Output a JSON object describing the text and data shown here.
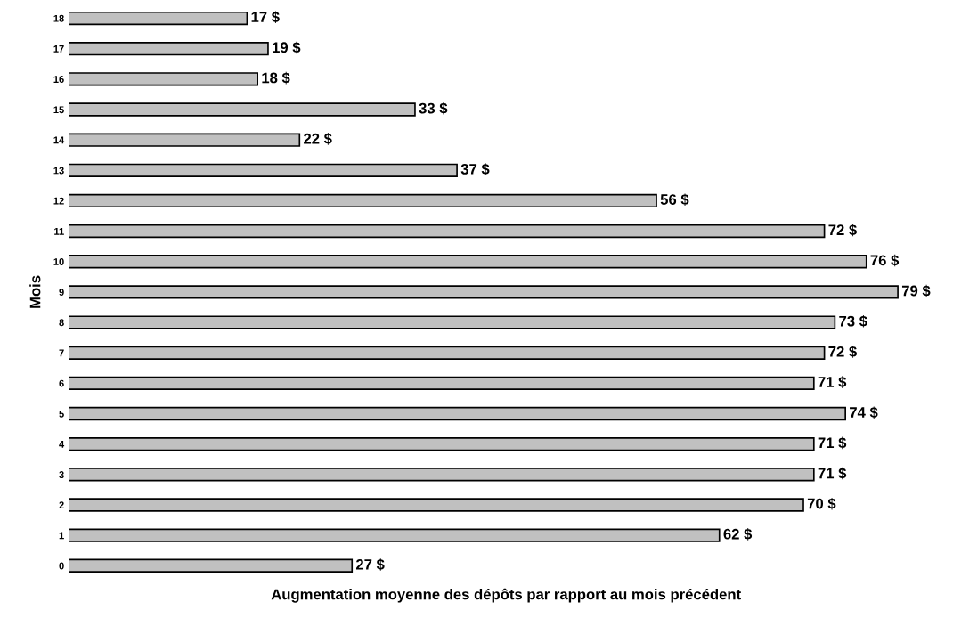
{
  "chart_data": {
    "type": "bar",
    "orientation": "horizontal",
    "xlabel": "Augmentation moyenne des dépôts par rapport au mois précédent",
    "ylabel": "Mois",
    "categories": [
      "18",
      "17",
      "16",
      "15",
      "14",
      "13",
      "12",
      "11",
      "10",
      "9",
      "8",
      "7",
      "6",
      "5",
      "4",
      "3",
      "2",
      "1",
      "0"
    ],
    "values": [
      17,
      19,
      18,
      33,
      22,
      37,
      56,
      72,
      76,
      79,
      73,
      72,
      71,
      74,
      71,
      71,
      70,
      62,
      27
    ],
    "value_labels": [
      "17 $",
      "19 $",
      "18 $",
      "33 $",
      "22 $",
      "37 $",
      "56 $",
      "72 $",
      "76 $",
      "79 $",
      "73 $",
      "72 $",
      "71 $",
      "74 $",
      "71 $",
      "71 $",
      "70 $",
      "62 $",
      "27 $"
    ],
    "color": "#c0c0c0",
    "tick_labels": "y",
    "grid": false,
    "legend": false
  }
}
